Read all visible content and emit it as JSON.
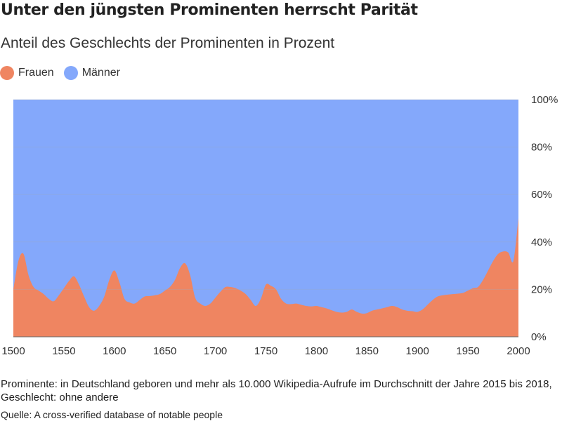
{
  "header": {
    "title": "Unter den jüngsten Prominenten herrscht Parität",
    "subtitle": "Anteil des Geschlechts der Prominenten in Prozent"
  },
  "legend": {
    "frauen_label": "Frauen",
    "maenner_label": "Männer"
  },
  "colors": {
    "frauen": "#ef8561",
    "maenner": "#84a8fb",
    "grid": "#9aa9c4"
  },
  "footer": {
    "note": "Prominente: in Deutschland geboren und mehr als 10.000 Wikipedia-Aufrufe im Durchschnitt der Jahre 2015 bis 2018, Geschlecht: ohne andere",
    "source": "Quelle: A cross-verified database of notable people"
  },
  "chart_data": {
    "type": "area",
    "stacked": true,
    "xlim": [
      1500,
      2000
    ],
    "ylim": [
      0,
      100
    ],
    "x_ticks": [
      "1500",
      "1550",
      "1600",
      "1650",
      "1700",
      "1750",
      "1800",
      "1850",
      "1900",
      "1950",
      "2000"
    ],
    "y_ticks": [
      "0%",
      "20%",
      "40%",
      "60%",
      "80%",
      "100%"
    ],
    "y_tick_values": [
      0,
      20,
      40,
      60,
      80,
      100
    ],
    "grid": true,
    "y_axis_position": "right",
    "legend_position": "top-left",
    "x": [
      1500,
      1505,
      1510,
      1515,
      1520,
      1525,
      1530,
      1535,
      1540,
      1545,
      1550,
      1555,
      1560,
      1565,
      1570,
      1575,
      1580,
      1585,
      1590,
      1595,
      1600,
      1605,
      1610,
      1615,
      1620,
      1625,
      1630,
      1635,
      1640,
      1645,
      1650,
      1655,
      1660,
      1665,
      1670,
      1675,
      1680,
      1685,
      1690,
      1695,
      1700,
      1705,
      1710,
      1715,
      1720,
      1725,
      1730,
      1735,
      1740,
      1745,
      1750,
      1755,
      1760,
      1765,
      1770,
      1775,
      1780,
      1785,
      1790,
      1795,
      1800,
      1805,
      1810,
      1815,
      1820,
      1825,
      1830,
      1835,
      1840,
      1845,
      1850,
      1855,
      1860,
      1865,
      1870,
      1875,
      1880,
      1885,
      1890,
      1895,
      1900,
      1905,
      1910,
      1915,
      1920,
      1925,
      1930,
      1935,
      1940,
      1945,
      1950,
      1955,
      1960,
      1965,
      1970,
      1975,
      1980,
      1985,
      1990,
      1995,
      2000
    ],
    "series": [
      {
        "name": "Frauen",
        "values": [
          20,
          32,
          35,
          26,
          21,
          19.5,
          18,
          16,
          15,
          17.5,
          20.5,
          23.5,
          25.5,
          22,
          17,
          12.5,
          11,
          13,
          17,
          24,
          28,
          23,
          16,
          14.5,
          14,
          15.5,
          17,
          17.2,
          17.5,
          18,
          19.5,
          21,
          24,
          29,
          31,
          26,
          16.5,
          14,
          13,
          14,
          16.5,
          19,
          21,
          21,
          20.5,
          19.5,
          18,
          15.5,
          13,
          16,
          22,
          21.5,
          20,
          16,
          14,
          13.8,
          14,
          13.5,
          13,
          12.8,
          13,
          12.5,
          12,
          11.2,
          10.5,
          10.2,
          10.5,
          11.5,
          10.5,
          9.8,
          10,
          11,
          11.5,
          12,
          12.5,
          13,
          12.5,
          11.5,
          11,
          10.8,
          10.5,
          11.5,
          13.5,
          15.5,
          17,
          17.5,
          17.8,
          18,
          18.2,
          18.5,
          19.5,
          20.5,
          21,
          24,
          28,
          32,
          35,
          36,
          35.5,
          32,
          50
        ]
      },
      {
        "name": "Männer",
        "values": [
          80,
          68,
          65,
          74,
          79,
          80.5,
          82,
          84,
          85,
          82.5,
          79.5,
          76.5,
          74.5,
          78,
          83,
          87.5,
          89,
          87,
          83,
          76,
          72,
          77,
          84,
          85.5,
          86,
          84.5,
          83,
          82.8,
          82.5,
          82,
          80.5,
          79,
          76,
          71,
          69,
          74,
          83.5,
          86,
          87,
          86,
          83.5,
          81,
          79,
          79,
          79.5,
          80.5,
          82,
          84.5,
          87,
          84,
          78,
          78.5,
          80,
          84,
          86,
          86.2,
          86,
          86.5,
          87,
          87.2,
          87,
          87.5,
          88,
          88.8,
          89.5,
          89.8,
          89.5,
          88.5,
          89.5,
          90.2,
          90,
          89,
          88.5,
          88,
          87.5,
          87,
          87.5,
          88.5,
          89,
          89.2,
          89.5,
          88.5,
          86.5,
          84.5,
          83,
          82.5,
          82.2,
          82,
          81.8,
          81.5,
          80.5,
          79.5,
          79,
          76,
          72,
          68,
          65,
          64,
          64.5,
          68,
          50
        ]
      }
    ]
  }
}
